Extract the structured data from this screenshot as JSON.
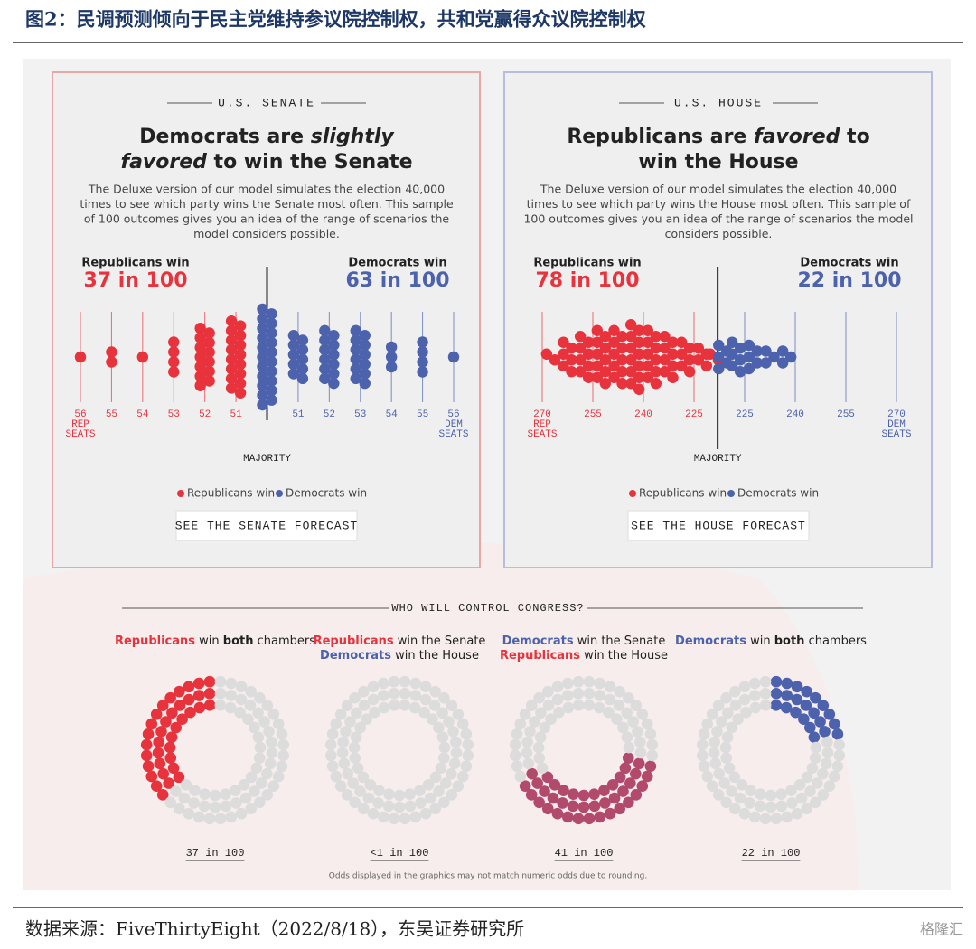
{
  "header": {
    "title": "图2：民调预测倾向于民主党维持参议院控制权，共和党赢得众议院控制权"
  },
  "chart_data": [
    {
      "type": "beeswarm",
      "kicker": "U.S. SENATE",
      "headline": [
        [
          {
            "text": "Democrats are "
          },
          {
            "text": "slightly",
            "italic": true
          }
        ],
        [
          {
            "text": "favored",
            "italic": true
          },
          {
            "text": " to win the Senate"
          }
        ]
      ],
      "description": [
        "The Deluxe version of our model simulates the election 40,000",
        "times to see which party wins the Senate most often. This sample",
        "of 100 outcomes gives you an idea of the range of scenarios the",
        "model considers possible."
      ],
      "categories": [
        "56",
        "55",
        "54",
        "53",
        "52",
        "51",
        null,
        "51",
        "52",
        "53",
        "54",
        "55",
        "56"
      ],
      "end_labels": [
        [
          "REP",
          "SEATS"
        ],
        [
          "DEM",
          "SEATS"
        ]
      ],
      "series": [
        {
          "name": "Republicans win",
          "color": "#e8323c",
          "total": 37,
          "total_label": "37 in 100",
          "values": [
            1,
            2,
            1,
            4,
            13,
            16,
            0,
            0,
            0,
            0,
            0,
            0,
            0
          ]
        },
        {
          "name": "Democrats win",
          "color": "#4d62ad",
          "total": 63,
          "total_label": "63 in 100",
          "values": [
            0,
            0,
            0,
            0,
            0,
            0,
            21,
            10,
            12,
            12,
            3,
            4,
            1
          ]
        }
      ],
      "majority_label": "MAJORITY",
      "button": "SEE THE SENATE FORECAST"
    },
    {
      "type": "histogram-swarm",
      "kicker": "U.S. HOUSE",
      "headline": [
        [
          {
            "text": "Republicans are "
          },
          {
            "text": "favored",
            "italic": true
          },
          {
            "text": " to"
          }
        ],
        [
          {
            "text": "win the House"
          }
        ]
      ],
      "description": [
        "The Deluxe version of our model simulates the election 40,000",
        "times to see which party wins the House most often. This sample of",
        "100 outcomes gives you an idea of the range of scenarios the model",
        "considers possible."
      ],
      "bins": [
        270,
        265,
        260,
        255,
        250,
        245,
        240,
        235,
        230,
        225,
        220,
        218,
        215,
        210,
        205,
        200,
        195
      ],
      "xlim": [
        270,
        165
      ],
      "xticks": [
        270,
        255,
        240,
        225,
        {
          "value": 210,
          "label": "225"
        },
        {
          "value": 195,
          "label": "240"
        },
        {
          "value": 180,
          "label": "255"
        },
        {
          "value": 165,
          "label": "270"
        }
      ],
      "majority": 218,
      "end_labels": [
        [
          "REP",
          "SEATS"
        ],
        [
          "DEM",
          "SEATS"
        ]
      ],
      "series": [
        {
          "name": "Republicans win",
          "color": "#e8323c",
          "total": 78,
          "total_label": "78 in 100",
          "values": [
            2,
            6,
            8,
            10,
            10,
            12,
            10,
            8,
            6,
            4,
            2,
            0,
            0,
            0,
            0,
            0
          ]
        },
        {
          "name": "Democrats win",
          "color": "#4d62ad",
          "total": 22,
          "total_label": "22 in 100",
          "values": [
            0,
            0,
            0,
            0,
            0,
            0,
            0,
            0,
            0,
            0,
            0,
            5,
            6,
            5,
            3,
            3
          ]
        }
      ],
      "majority_label": "MAJORITY",
      "button": "SEE THE HOUSE FORECAST"
    },
    {
      "type": "dot-donut",
      "title": "WHO WILL CONTROL CONGRESS?",
      "empty_color": "#dcdcdc",
      "series": [
        {
          "name": [
            [
              {
                "text": "Republicans",
                "color": "#e8323c"
              },
              {
                "text": " win "
              },
              {
                "text": "both",
                "bold": true
              },
              {
                "text": " chambers"
              }
            ]
          ],
          "color": "#e8323c",
          "value": 37,
          "value_label": "37 in 100"
        },
        {
          "name": [
            [
              {
                "text": "Republicans",
                "color": "#e8323c"
              },
              {
                "text": " win the Senate"
              }
            ],
            [
              {
                "text": "Democrats",
                "color": "#4d62ad"
              },
              {
                "text": " win the House"
              }
            ]
          ],
          "color": "#b24a6e",
          "value": 0,
          "value_label": "<1 in 100"
        },
        {
          "name": [
            [
              {
                "text": "Democrats",
                "color": "#4d62ad"
              },
              {
                "text": " win the Senate"
              }
            ],
            [
              {
                "text": "Republicans",
                "color": "#e8323c"
              },
              {
                "text": " win the House"
              }
            ]
          ],
          "color": "#b24a6e",
          "value": 41,
          "value_label": "41 in 100"
        },
        {
          "name": [
            [
              {
                "text": "Democrats",
                "color": "#4d62ad"
              },
              {
                "text": " win "
              },
              {
                "text": "both",
                "bold": true
              },
              {
                "text": " chambers"
              }
            ]
          ],
          "color": "#4d62ad",
          "value": 22,
          "value_label": "22 in 100"
        }
      ],
      "note": "Odds displayed in the graphics may not match numeric odds due to rounding."
    }
  ],
  "footer": {
    "source": "数据来源：FiveThirtyEight（2022/8/18），东吴证券研究所",
    "watermark": "格隆汇"
  }
}
